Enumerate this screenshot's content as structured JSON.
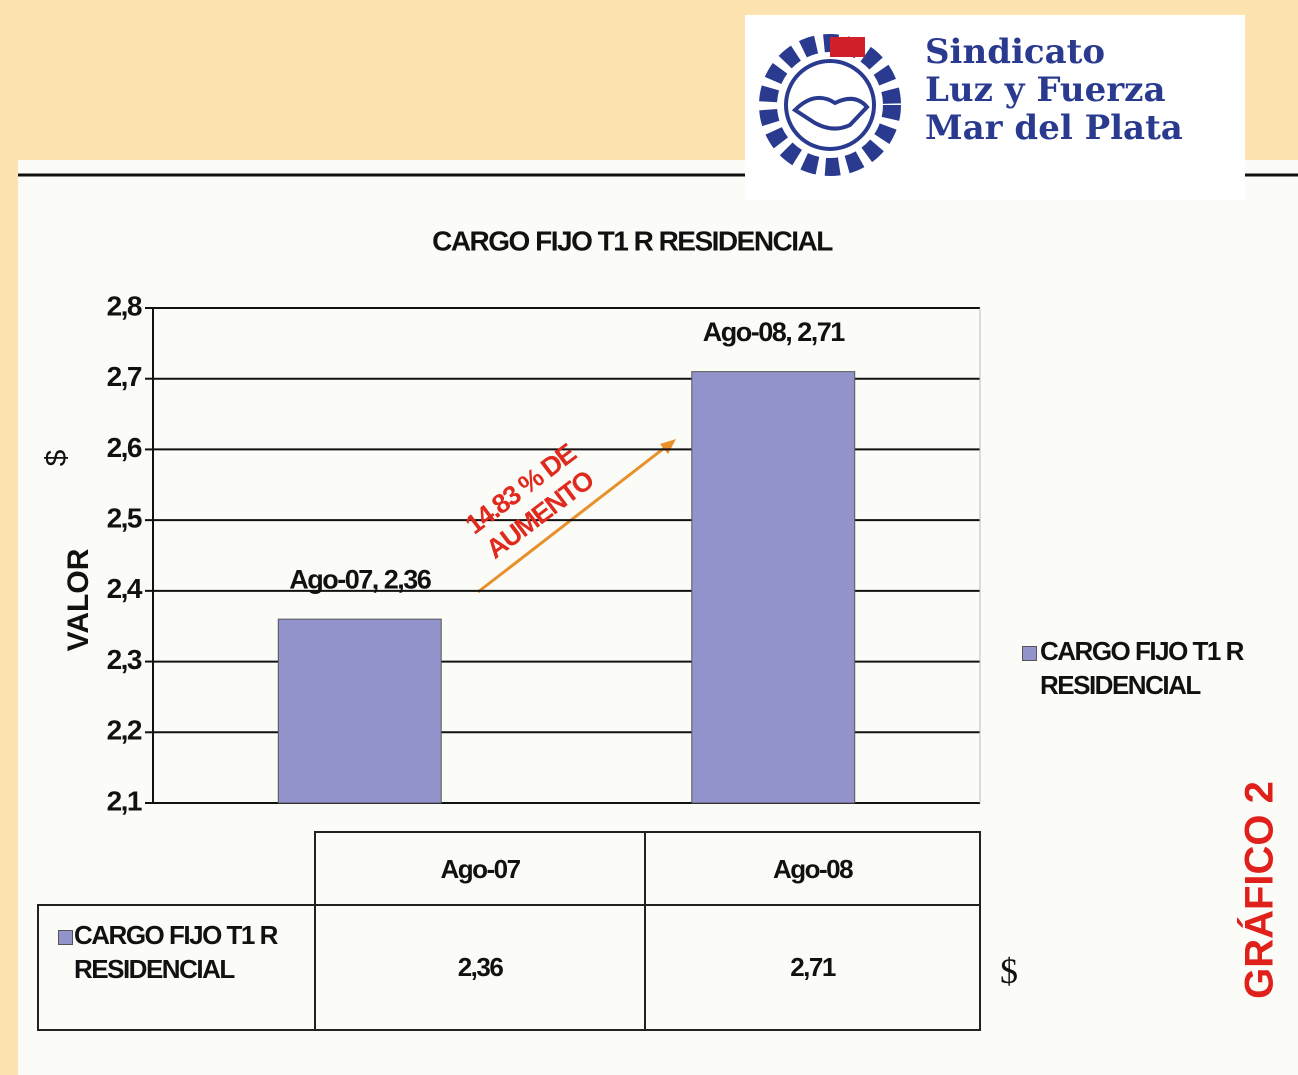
{
  "logo": {
    "lines": [
      "Sindicato",
      "Luz y Fuerza",
      "Mar del Plata"
    ]
  },
  "side_label": "GRÁFICO 2",
  "chart_data": {
    "type": "bar",
    "title": "CARGO FIJO T1 R RESIDENCIAL",
    "y_label": "VALOR",
    "y_unit": "$",
    "categories": [
      "Ago-07",
      "Ago-08"
    ],
    "series": [
      {
        "name": "CARGO FIJO T1 R RESIDENCIAL",
        "color": "#9393cc",
        "values": [
          2.36,
          2.71
        ],
        "value_labels": [
          "Ago-07, 2,36",
          "Ago-08, 2,71"
        ]
      }
    ],
    "ylim": [
      2.1,
      2.8
    ],
    "yticks": [
      {
        "value": 2.1,
        "label": "2,1"
      },
      {
        "value": 2.2,
        "label": "2,2"
      },
      {
        "value": 2.3,
        "label": "2,3"
      },
      {
        "value": 2.4,
        "label": "2,4"
      },
      {
        "value": 2.5,
        "label": "2,5"
      },
      {
        "value": 2.6,
        "label": "2,6"
      },
      {
        "value": 2.7,
        "label": "2,7"
      },
      {
        "value": 2.8,
        "label": "2,8"
      }
    ],
    "grid": true,
    "legend": "right",
    "annotation": "14.83 % DE AUMENTO",
    "table": {
      "cells": [
        "2,36",
        "2,71"
      ],
      "unit": "$"
    }
  }
}
